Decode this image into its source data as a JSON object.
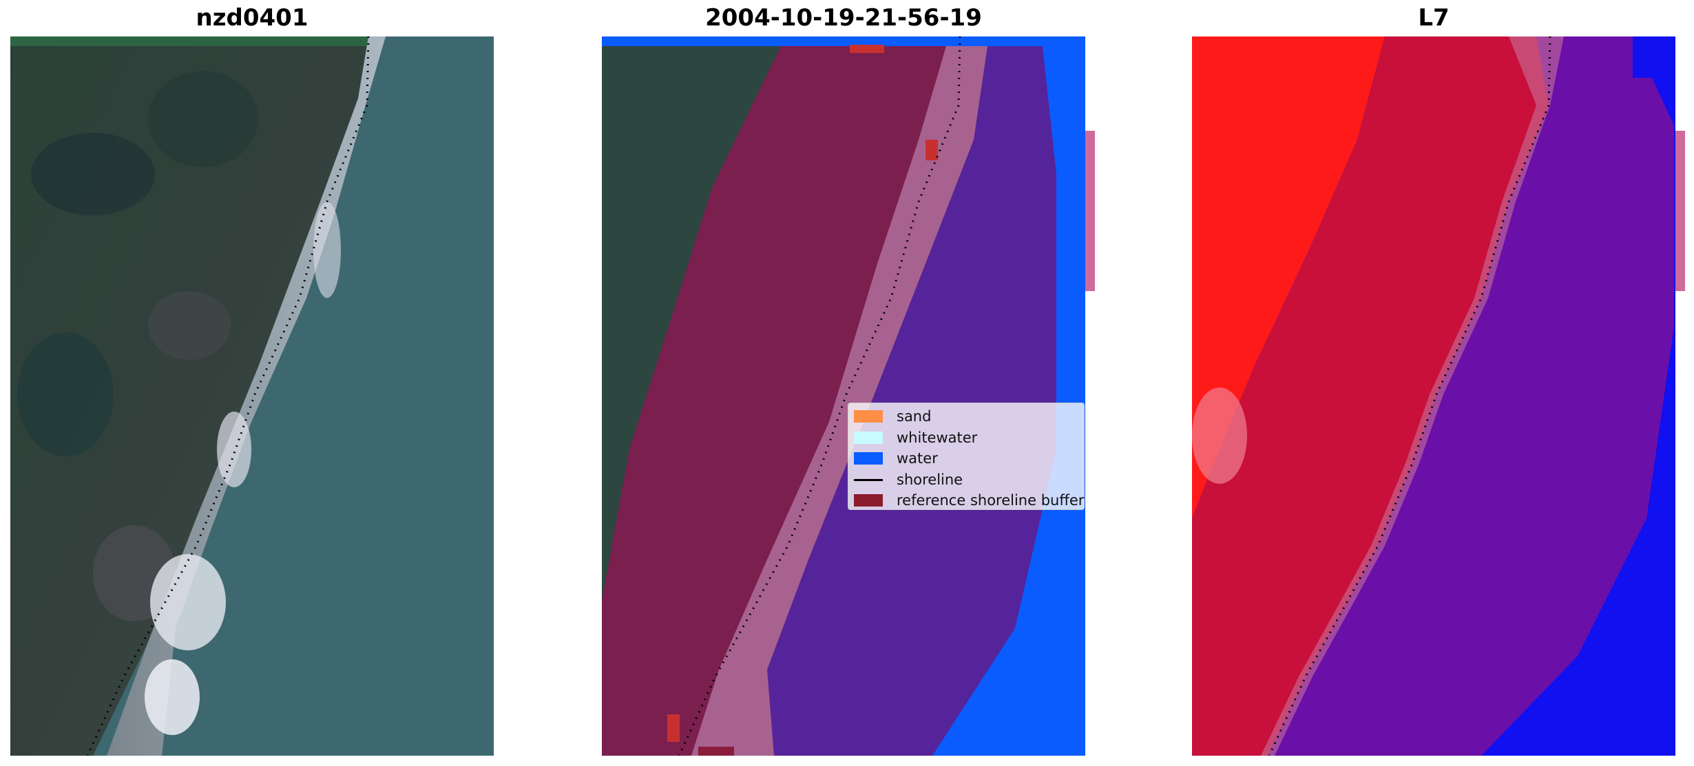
{
  "panels": [
    {
      "title": "nzd0401"
    },
    {
      "title": "2004-10-19-21-56-19"
    },
    {
      "title": "L7"
    }
  ],
  "legend": {
    "items": [
      {
        "label": "sand",
        "color": "#ff8e47"
      },
      {
        "label": "whitewater",
        "color": "#c8fbff"
      },
      {
        "label": "water",
        "color": "#0a5cff"
      },
      {
        "label": "shoreline",
        "color": "#000000"
      },
      {
        "label": "reference shoreline buffer",
        "color": "#8b1c2c"
      }
    ]
  },
  "colors": {
    "land_dark": "#283c38",
    "water_rgb": "#3e6870",
    "buffer_land": "#7a1f4e",
    "buffer_sand": "#a8628f",
    "buffer_water": "#55249a",
    "water_class": "#0a5cff",
    "l7_land": "#ff1a1a",
    "l7_land_buffer": "#c8103a",
    "l7_water_buffer": "#6a10a8",
    "l7_water": "#1010f0",
    "side_tab": "#cf6a9c"
  }
}
